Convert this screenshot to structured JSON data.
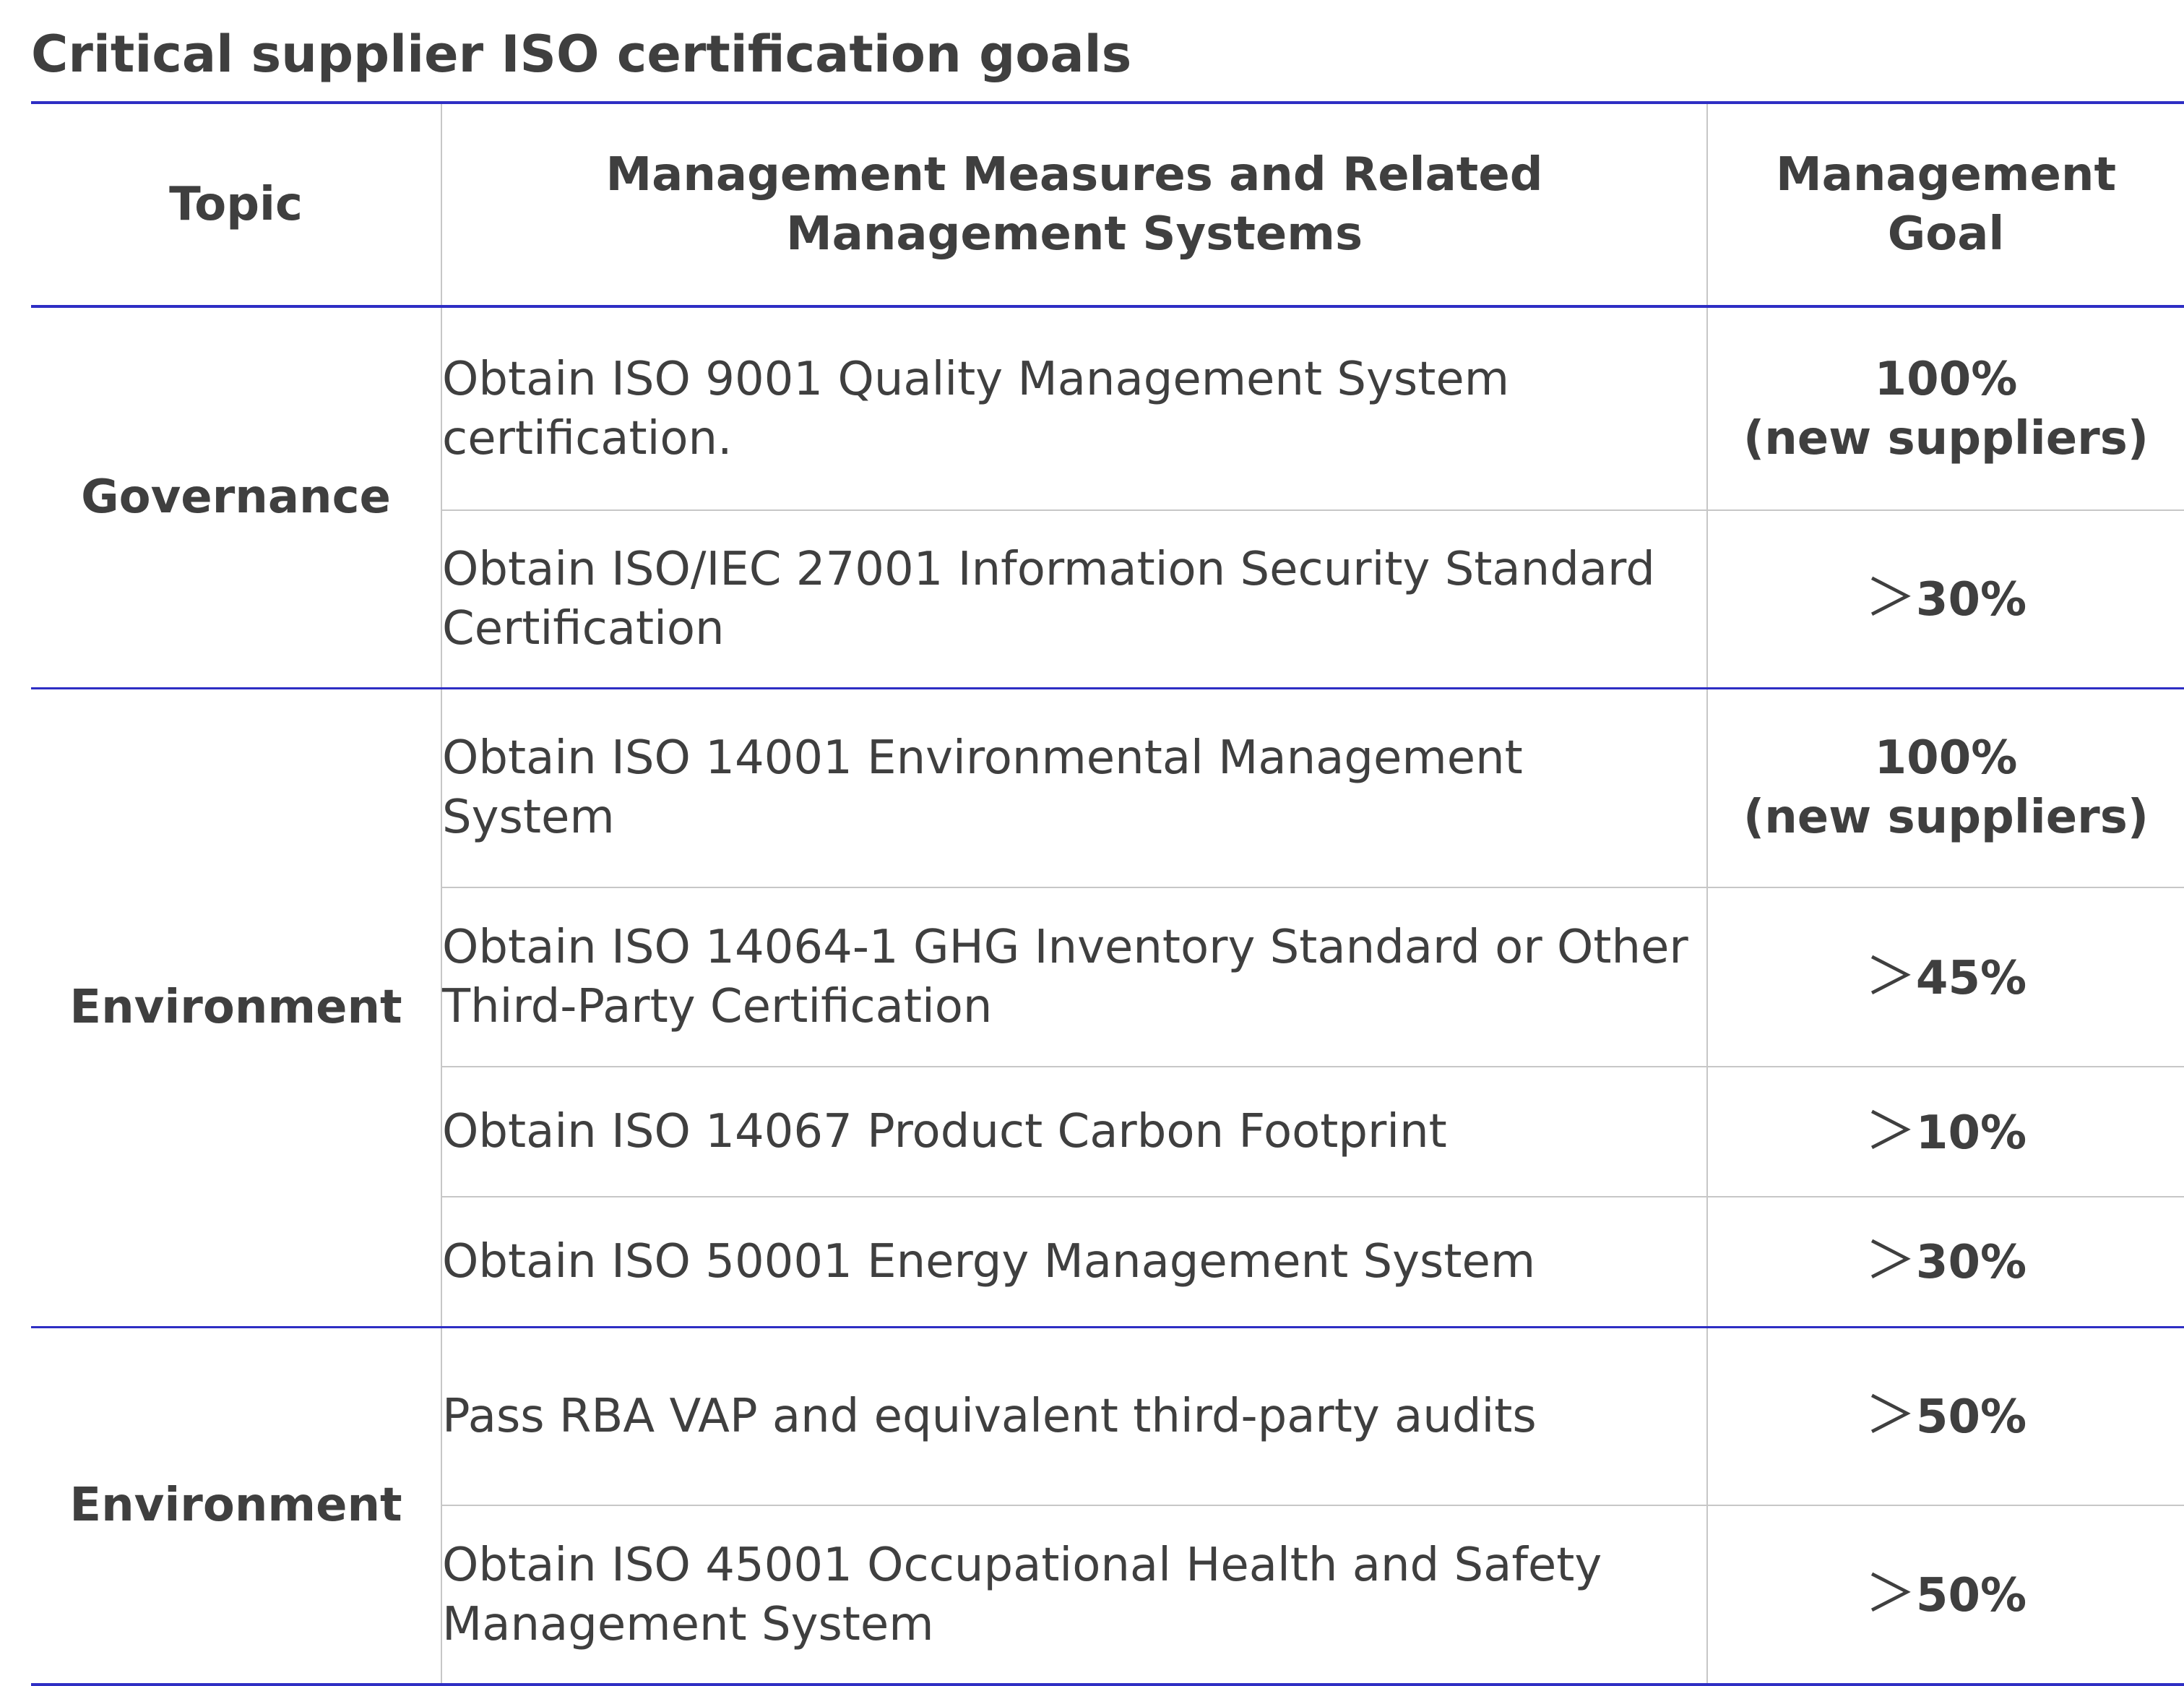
{
  "title": "Critical supplier ISO certification goals",
  "table": {
    "headers": {
      "topic": "Topic",
      "measures": "Management Measures and Related Management Systems",
      "goal_line1": "Management",
      "goal_line2": "Goal"
    },
    "groups": [
      {
        "topic": "Governance",
        "rows": [
          {
            "measure": "Obtain ISO 9001 Quality Management System certification.",
            "goal_value": "100%",
            "goal_note": "(new suppliers)"
          },
          {
            "measure": "Obtain ISO/IEC 27001 Information Security Standard Certification",
            "goal_prefix": "＞",
            "goal_value": "30%"
          }
        ]
      },
      {
        "topic": "Environment",
        "rows": [
          {
            "measure": "Obtain ISO 14001 Environmental Management System",
            "goal_value": "100%",
            "goal_note": "(new suppliers)"
          },
          {
            "measure": "Obtain ISO 14064-1 GHG Inventory Standard or Other Third-Party Certification",
            "goal_prefix": "＞",
            "goal_value": "45%"
          },
          {
            "measure": "Obtain ISO 14067 Product Carbon Footprint",
            "goal_prefix": "＞",
            "goal_value": "10%"
          },
          {
            "measure": "Obtain ISO 50001 Energy Management System",
            "goal_prefix": "＞",
            "goal_value": "30%"
          }
        ]
      },
      {
        "topic": "Environment",
        "rows": [
          {
            "measure": "Pass RBA VAP and equivalent third-party audits",
            "goal_prefix": "＞",
            "goal_value": "50%"
          },
          {
            "measure": "Obtain ISO 45001 Occupational Health and Safety Management System",
            "goal_prefix": "＞",
            "goal_value": "50%"
          }
        ]
      }
    ]
  },
  "colors": {
    "rule_accent": "#2e2ec4",
    "rule_light": "#c7c7c7",
    "text": "#3f3f3f"
  }
}
